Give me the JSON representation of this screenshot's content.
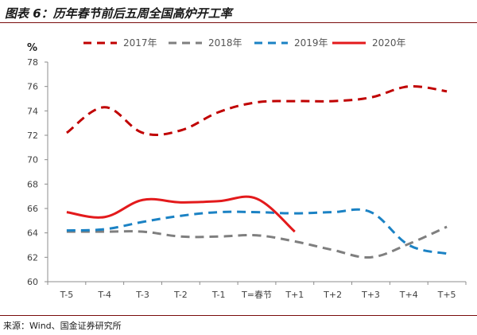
{
  "header": {
    "title": "图表 6：历年春节前后五周全国高炉开工率"
  },
  "footer": {
    "source": "来源：Wind、国金证券研究所"
  },
  "chart_data": {
    "type": "line",
    "title": "",
    "xlabel": "",
    "ylabel": "%",
    "ylim": [
      60,
      78
    ],
    "yticks": [
      60,
      62,
      64,
      66,
      68,
      70,
      72,
      74,
      76,
      78
    ],
    "grid": false,
    "legend_position": "top",
    "categories": [
      "T-5",
      "T-4",
      "T-3",
      "T-2",
      "T-1",
      "T=春节",
      "T+1",
      "T+2",
      "T+3",
      "T+4",
      "T+5"
    ],
    "series": [
      {
        "name": "2017年",
        "color": "#c00000",
        "style": "dashed",
        "values": [
          72.2,
          74.3,
          72.2,
          72.4,
          73.9,
          74.7,
          74.8,
          74.8,
          75.1,
          76.0,
          75.6
        ]
      },
      {
        "name": "2018年",
        "color": "#7f7f7f",
        "style": "dashed",
        "values": [
          64.1,
          64.1,
          64.1,
          63.7,
          63.7,
          63.8,
          63.3,
          62.6,
          62.0,
          63.1,
          64.5
        ]
      },
      {
        "name": "2019年",
        "color": "#1b82c4",
        "style": "dashed",
        "values": [
          64.2,
          64.3,
          64.9,
          65.4,
          65.7,
          65.7,
          65.6,
          65.7,
          65.7,
          63.0,
          62.3
        ]
      },
      {
        "name": "2020年",
        "color": "#e31a1c",
        "style": "solid",
        "values": [
          65.7,
          65.3,
          66.7,
          66.5,
          66.6,
          66.8,
          64.1,
          null,
          null,
          null,
          null
        ]
      }
    ]
  }
}
